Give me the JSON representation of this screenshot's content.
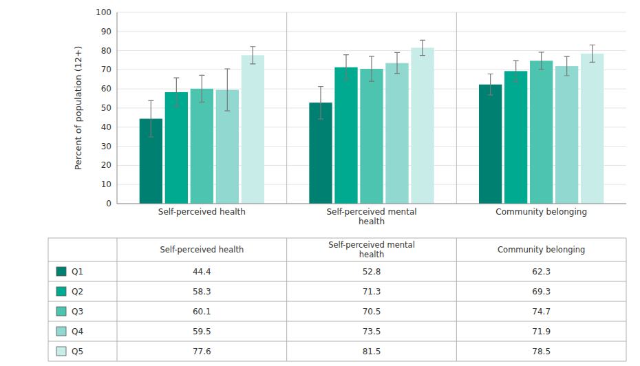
{
  "chart_data": {
    "type": "bar",
    "categories": [
      "Self-perceived health",
      "Self-perceived mental\nhealth",
      "Community belonging"
    ],
    "series": [
      {
        "name": "Q1",
        "color": "#008070",
        "values": [
          44.4,
          52.8,
          62.3
        ],
        "errors": [
          9.5,
          8.5,
          5.5
        ]
      },
      {
        "name": "Q2",
        "color": "#00aa90",
        "values": [
          58.3,
          71.3,
          69.3
        ],
        "errors": [
          7.5,
          6.5,
          5.5
        ]
      },
      {
        "name": "Q3",
        "color": "#4dc4b0",
        "values": [
          60.1,
          70.5,
          74.7
        ],
        "errors": [
          7.0,
          6.5,
          4.5
        ]
      },
      {
        "name": "Q4",
        "color": "#90d8d0",
        "values": [
          59.5,
          73.5,
          71.9
        ],
        "errors": [
          11.0,
          5.5,
          5.0
        ]
      },
      {
        "name": "Q5",
        "color": "#c8ece8",
        "values": [
          77.6,
          81.5,
          78.5
        ],
        "errors": [
          4.5,
          4.0,
          4.5
        ]
      }
    ],
    "ylabel": "Percent of population (12+)",
    "ylim": [
      0,
      100
    ],
    "yticks": [
      0,
      10,
      20,
      30,
      40,
      50,
      60,
      70,
      80,
      90,
      100
    ],
    "grid": true,
    "legend": "bottom"
  }
}
